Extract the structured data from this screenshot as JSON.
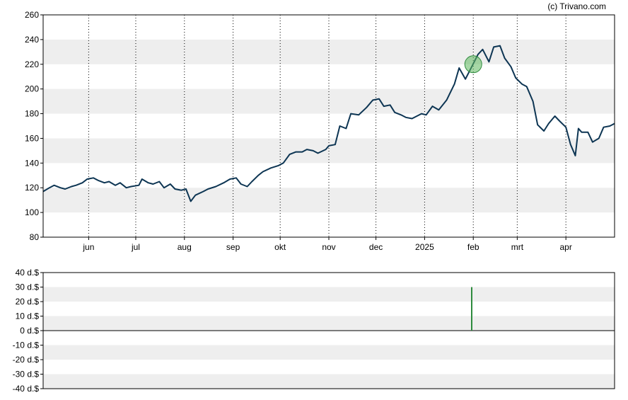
{
  "credit": "(c) Trivano.com",
  "colors": {
    "line": "#0d3553",
    "band": "#eeeeee",
    "volume_bar": "#2e8b3e",
    "marker_fill": "#5cb85c",
    "marker_stroke": "#2e8b3e"
  },
  "chart_data": [
    {
      "type": "line",
      "title": "",
      "ylim": [
        80,
        260
      ],
      "y_ticks": [
        "260",
        "240",
        "220",
        "200",
        "180",
        "160",
        "140",
        "120",
        "100",
        "80"
      ],
      "x_tick_labels": [
        "jun",
        "jul",
        "aug",
        "sep",
        "okt",
        "nov",
        "dec",
        "2025",
        "feb",
        "mrt",
        "apr"
      ],
      "x_tick_dates": [
        "2024-06-01",
        "2024-07-01",
        "2024-08-01",
        "2024-09-01",
        "2024-10-01",
        "2024-11-01",
        "2024-12-01",
        "2025-01-01",
        "2025-02-01",
        "2025-03-01",
        "2025-04-01"
      ],
      "xlim": [
        "2024-05-03",
        "2025-05-02"
      ],
      "grid": "vertical dotted at month ticks, alternating horizontal bands",
      "series": [
        {
          "points": [
            [
              "2024-05-03",
              117
            ],
            [
              "2024-05-07",
              120
            ],
            [
              "2024-05-10",
              122
            ],
            [
              "2024-05-14",
              120
            ],
            [
              "2024-05-17",
              119
            ],
            [
              "2024-05-21",
              121
            ],
            [
              "2024-05-24",
              122
            ],
            [
              "2024-05-28",
              124
            ],
            [
              "2024-05-31",
              127
            ],
            [
              "2024-06-04",
              128
            ],
            [
              "2024-06-07",
              126
            ],
            [
              "2024-06-11",
              124
            ],
            [
              "2024-06-14",
              125
            ],
            [
              "2024-06-18",
              122
            ],
            [
              "2024-06-21",
              124
            ],
            [
              "2024-06-25",
              120
            ],
            [
              "2024-06-28",
              121
            ],
            [
              "2024-07-03",
              122
            ],
            [
              "2024-07-05",
              127
            ],
            [
              "2024-07-09",
              124
            ],
            [
              "2024-07-12",
              123
            ],
            [
              "2024-07-16",
              125
            ],
            [
              "2024-07-19",
              120
            ],
            [
              "2024-07-23",
              123
            ],
            [
              "2024-07-26",
              119
            ],
            [
              "2024-07-30",
              118
            ],
            [
              "2024-08-02",
              119
            ],
            [
              "2024-08-05",
              109
            ],
            [
              "2024-08-08",
              114
            ],
            [
              "2024-08-13",
              117
            ],
            [
              "2024-08-16",
              119
            ],
            [
              "2024-08-21",
              121
            ],
            [
              "2024-08-26",
              124
            ],
            [
              "2024-08-30",
              127
            ],
            [
              "2024-09-03",
              128
            ],
            [
              "2024-09-06",
              123
            ],
            [
              "2024-09-10",
              121
            ],
            [
              "2024-09-13",
              125
            ],
            [
              "2024-09-17",
              130
            ],
            [
              "2024-09-20",
              133
            ],
            [
              "2024-09-25",
              136
            ],
            [
              "2024-09-30",
              138
            ],
            [
              "2024-10-03",
              140
            ],
            [
              "2024-10-07",
              147
            ],
            [
              "2024-10-11",
              149
            ],
            [
              "2024-10-15",
              149
            ],
            [
              "2024-10-18",
              151
            ],
            [
              "2024-10-22",
              150
            ],
            [
              "2024-10-25",
              148
            ],
            [
              "2024-10-30",
              151
            ],
            [
              "2024-11-01",
              154
            ],
            [
              "2024-11-05",
              155
            ],
            [
              "2024-11-08",
              170
            ],
            [
              "2024-11-12",
              168
            ],
            [
              "2024-11-15",
              180
            ],
            [
              "2024-11-20",
              179
            ],
            [
              "2024-11-25",
              185
            ],
            [
              "2024-11-29",
              191
            ],
            [
              "2024-12-03",
              192
            ],
            [
              "2024-12-06",
              186
            ],
            [
              "2024-12-10",
              187
            ],
            [
              "2024-12-13",
              181
            ],
            [
              "2024-12-17",
              179
            ],
            [
              "2024-12-20",
              177
            ],
            [
              "2024-12-24",
              176
            ],
            [
              "2024-12-30",
              180
            ],
            [
              "2025-01-02",
              179
            ],
            [
              "2025-01-06",
              186
            ],
            [
              "2025-01-10",
              183
            ],
            [
              "2025-01-15",
              191
            ],
            [
              "2025-01-20",
              204
            ],
            [
              "2025-01-23",
              217
            ],
            [
              "2025-01-27",
              208
            ],
            [
              "2025-01-31",
              218
            ],
            [
              "2025-02-04",
              228
            ],
            [
              "2025-02-07",
              232
            ],
            [
              "2025-02-11",
              222
            ],
            [
              "2025-02-14",
              234
            ],
            [
              "2025-02-18",
              235
            ],
            [
              "2025-02-21",
              225
            ],
            [
              "2025-02-25",
              218
            ],
            [
              "2025-02-28",
              209
            ],
            [
              "2025-03-04",
              204
            ],
            [
              "2025-03-07",
              202
            ],
            [
              "2025-03-11",
              190
            ],
            [
              "2025-03-14",
              171
            ],
            [
              "2025-03-18",
              166
            ],
            [
              "2025-03-21",
              172
            ],
            [
              "2025-03-25",
              178
            ],
            [
              "2025-03-28",
              174
            ],
            [
              "2025-04-01",
              169
            ],
            [
              "2025-04-04",
              155
            ],
            [
              "2025-04-07",
              146
            ],
            [
              "2025-04-09",
              168
            ],
            [
              "2025-04-11",
              165
            ],
            [
              "2025-04-15",
              165
            ],
            [
              "2025-04-18",
              157
            ],
            [
              "2025-04-22",
              160
            ],
            [
              "2025-04-25",
              169
            ],
            [
              "2025-04-29",
              170
            ],
            [
              "2025-05-02",
              172
            ]
          ]
        }
      ],
      "markers": [
        {
          "date": "2025-02-01",
          "value": 220
        }
      ]
    },
    {
      "type": "bar",
      "title": "",
      "ylim": [
        -40,
        40
      ],
      "y_ticks": [
        "40 d.$",
        "30 d.$",
        "20 d.$",
        "10 d.$",
        "0 d.$",
        "-10 d.$",
        "-20 d.$",
        "-30 d.$",
        "-40 d.$"
      ],
      "xlim": [
        "2024-05-03",
        "2025-05-02"
      ],
      "bars": [
        {
          "date": "2025-01-31",
          "value": 30
        }
      ]
    }
  ]
}
